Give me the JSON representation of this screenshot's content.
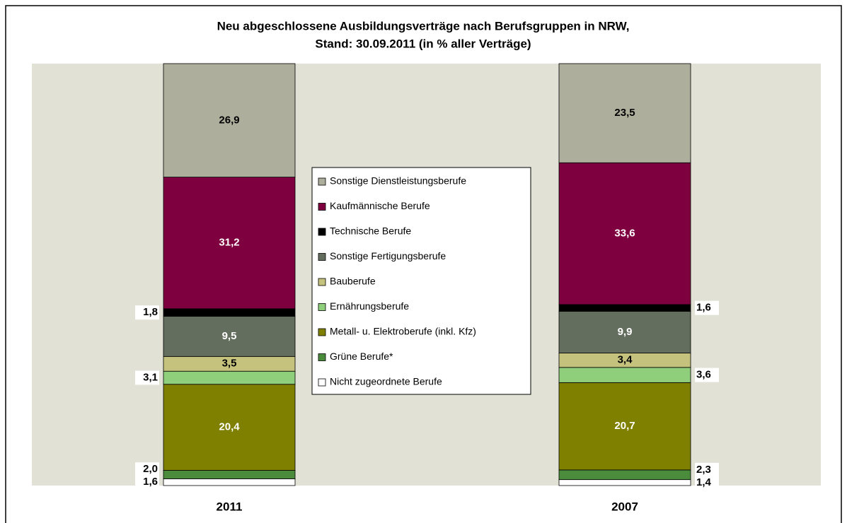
{
  "chart_data": {
    "type": "stacked_bar",
    "title": [
      "Neu abgeschlossene Ausbildungsverträge nach Berufsgruppen in NRW,",
      "Stand: 30.09.2011 (in % aller Verträge)"
    ],
    "categories": [
      "2011",
      "2007"
    ],
    "ylim": [
      0,
      100
    ],
    "series": [
      {
        "name": "Nicht zugeordnete Berufe",
        "color": "#ffffff",
        "values": [
          1.6,
          1.4
        ],
        "value_labels": [
          "1,6",
          "1,4"
        ]
      },
      {
        "name": "Grüne Berufe*",
        "color": "#4a8c3c",
        "values": [
          2.0,
          2.3
        ],
        "value_labels": [
          "2,0",
          "2,3"
        ]
      },
      {
        "name": "Metall- u. Elektroberufe (inkl. Kfz)",
        "color": "#808000",
        "values": [
          20.4,
          20.7
        ],
        "value_labels": [
          "20,4",
          "20,7"
        ]
      },
      {
        "name": "Ernährungsberufe",
        "color": "#8fcf7c",
        "values": [
          3.1,
          3.6
        ],
        "value_labels": [
          "3,1",
          "3,6"
        ]
      },
      {
        "name": "Bauberufe",
        "color": "#c4c27c",
        "values": [
          3.5,
          3.4
        ],
        "value_labels": [
          "3,5",
          "3,4"
        ]
      },
      {
        "name": "Sonstige Fertigungsberufe",
        "color": "#646e5e",
        "values": [
          9.5,
          9.9
        ],
        "value_labels": [
          "9,5",
          "9,9"
        ]
      },
      {
        "name": "Technische Berufe",
        "color": "#000000",
        "values": [
          1.8,
          1.6
        ],
        "value_labels": [
          "1,8",
          "1,6"
        ]
      },
      {
        "name": "Kaufmännische Berufe",
        "color": "#7f003f",
        "values": [
          31.2,
          33.6
        ],
        "value_labels": [
          "31,2",
          "33,6"
        ]
      },
      {
        "name": "Sonstige Dienstleistungsberufe",
        "color": "#aeae9c",
        "values": [
          26.9,
          23.5
        ],
        "value_labels": [
          "26,9",
          "23,5"
        ]
      }
    ]
  }
}
